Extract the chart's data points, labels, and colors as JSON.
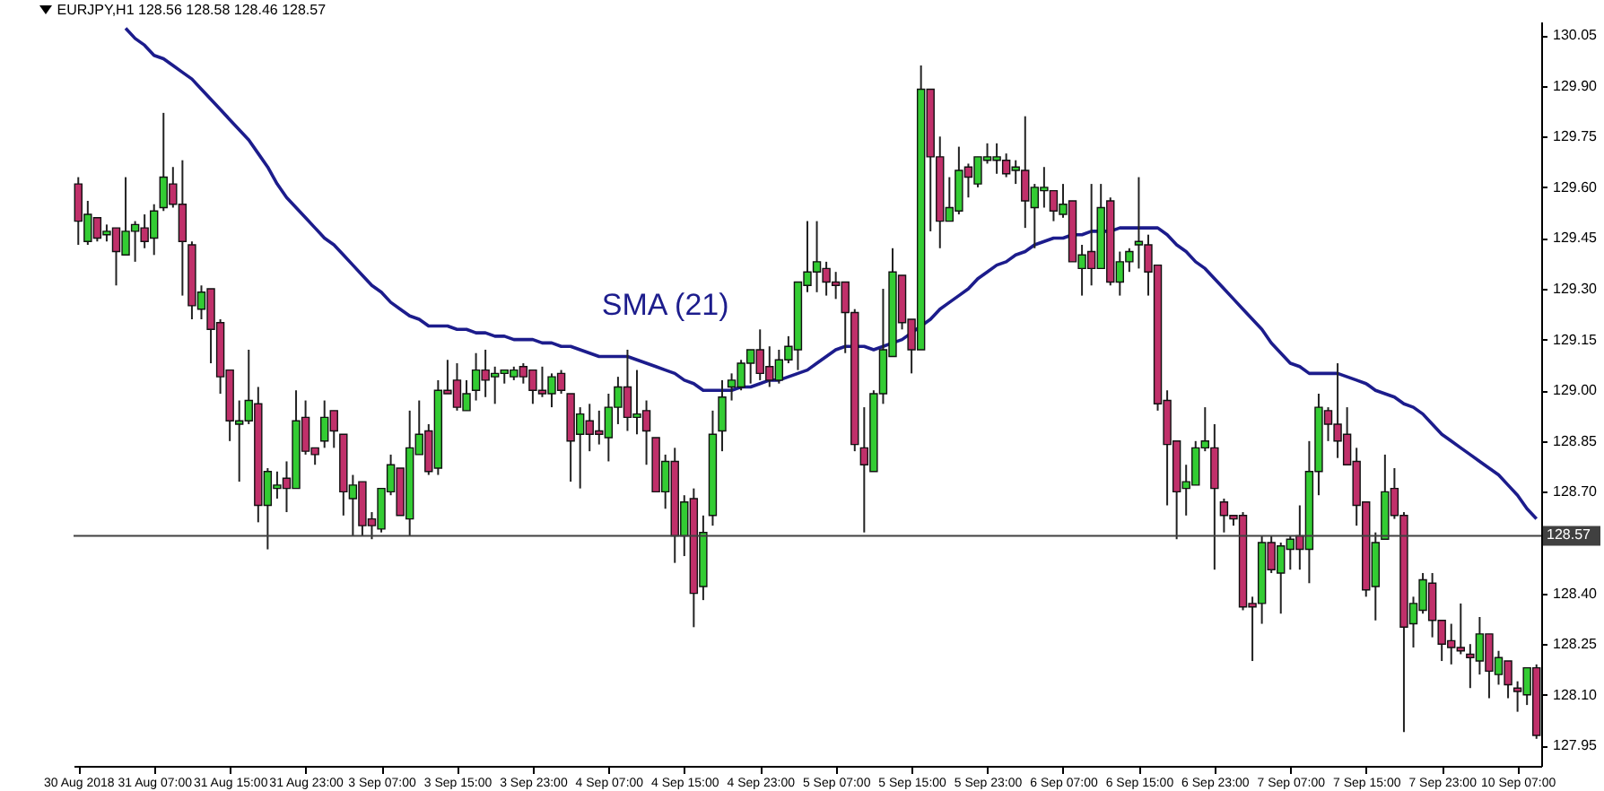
{
  "chart_data": {
    "type": "candlestick",
    "title": "EURJPY,H1 128.56 128.58 128.46 128.57",
    "categories": [
      "30 Aug 2018",
      null,
      null,
      null,
      null,
      null,
      null,
      null,
      "31 Aug 07:00",
      null,
      null,
      null,
      null,
      null,
      null,
      null,
      "31 Aug 15:00",
      null,
      null,
      null,
      null,
      null,
      null,
      null,
      "31 Aug 23:00",
      null,
      null,
      null,
      null,
      null,
      null,
      null,
      "3 Sep 07:00",
      null,
      null,
      null,
      null,
      null,
      null,
      null,
      "3 Sep 15:00",
      null,
      null,
      null,
      null,
      null,
      null,
      null,
      "3 Sep 23:00",
      null,
      null,
      null,
      null,
      null,
      null,
      null,
      "4 Sep 07:00",
      null,
      null,
      null,
      null,
      null,
      null,
      null,
      "4 Sep 15:00",
      null,
      null,
      null,
      null,
      null,
      null,
      null,
      "4 Sep 23:00",
      null,
      null,
      null,
      null,
      null,
      null,
      null,
      "5 Sep 07:00",
      null,
      null,
      null,
      null,
      null,
      null,
      null,
      "5 Sep 15:00",
      null,
      null,
      null,
      null,
      null,
      null,
      null,
      "5 Sep 23:00",
      null,
      null,
      null,
      null,
      null,
      null,
      null,
      "6 Sep 07:00",
      null,
      null,
      null,
      null,
      null,
      null,
      null,
      "6 Sep 15:00",
      null,
      null,
      null,
      null,
      null,
      null,
      null,
      "6 Sep 23:00",
      null,
      null,
      null,
      null,
      null,
      null,
      null,
      "7 Sep 07:00",
      null,
      null,
      null,
      null,
      null,
      null,
      null,
      "7 Sep 15:00",
      null,
      null,
      null,
      null,
      null,
      null,
      null,
      "7 Sep 23:00",
      null,
      null,
      null,
      null,
      null,
      null,
      null,
      "10 Sep 07:00",
      null,
      null
    ],
    "ohlc": [
      [
        129.61,
        129.63,
        129.43,
        129.5
      ],
      [
        129.44,
        129.56,
        129.43,
        129.52
      ],
      [
        129.51,
        129.51,
        129.44,
        129.45
      ],
      [
        129.46,
        129.49,
        129.44,
        129.47
      ],
      [
        129.48,
        129.48,
        129.31,
        129.41
      ],
      [
        129.4,
        129.63,
        129.4,
        129.47
      ],
      [
        129.47,
        129.5,
        129.38,
        129.49
      ],
      [
        129.48,
        129.52,
        129.42,
        129.44
      ],
      [
        129.45,
        129.55,
        129.4,
        129.53
      ],
      [
        129.54,
        129.82,
        129.53,
        129.63
      ],
      [
        129.61,
        129.66,
        129.54,
        129.55
      ],
      [
        129.55,
        129.68,
        129.28,
        129.44
      ],
      [
        129.43,
        129.44,
        129.21,
        129.25
      ],
      [
        129.24,
        129.31,
        129.21,
        129.29
      ],
      [
        129.3,
        129.3,
        129.08,
        129.18
      ],
      [
        129.2,
        129.21,
        128.99,
        129.04
      ],
      [
        129.06,
        129.06,
        128.85,
        128.91
      ],
      [
        128.9,
        128.97,
        128.73,
        128.91
      ],
      [
        128.91,
        129.12,
        128.9,
        128.97
      ],
      [
        128.96,
        129.01,
        128.61,
        128.66
      ],
      [
        128.66,
        128.77,
        128.53,
        128.76
      ],
      [
        128.71,
        128.76,
        128.68,
        128.72
      ],
      [
        128.74,
        128.79,
        128.64,
        128.71
      ],
      [
        128.71,
        129.0,
        128.71,
        128.91
      ],
      [
        128.92,
        128.97,
        128.81,
        128.82
      ],
      [
        128.83,
        128.83,
        128.78,
        128.81
      ],
      [
        128.85,
        128.97,
        128.83,
        128.92
      ],
      [
        128.94,
        128.94,
        128.83,
        128.88
      ],
      [
        128.87,
        128.87,
        128.63,
        128.7
      ],
      [
        128.68,
        128.75,
        128.57,
        128.72
      ],
      [
        128.73,
        128.73,
        128.57,
        128.6
      ],
      [
        128.62,
        128.64,
        128.56,
        128.6
      ],
      [
        128.59,
        128.71,
        128.58,
        128.71
      ],
      [
        128.7,
        128.81,
        128.69,
        128.78
      ],
      [
        128.77,
        128.77,
        128.63,
        128.63
      ],
      [
        128.62,
        128.94,
        128.57,
        128.83
      ],
      [
        128.81,
        128.97,
        128.81,
        128.87
      ],
      [
        128.88,
        128.9,
        128.75,
        128.76
      ],
      [
        128.77,
        129.03,
        128.75,
        129.0
      ],
      [
        129.0,
        129.09,
        128.99,
        128.99
      ],
      [
        129.03,
        129.08,
        128.94,
        128.95
      ],
      [
        128.94,
        129.03,
        128.94,
        128.99
      ],
      [
        129.0,
        129.11,
        128.97,
        129.06
      ],
      [
        129.06,
        129.12,
        128.98,
        129.03
      ],
      [
        129.04,
        129.07,
        128.96,
        129.05
      ],
      [
        129.05,
        129.06,
        129.02,
        129.06
      ],
      [
        129.04,
        129.07,
        129.03,
        129.06
      ],
      [
        129.07,
        129.08,
        129.02,
        129.04
      ],
      [
        129.06,
        129.06,
        128.96,
        129.0
      ],
      [
        129.0,
        129.07,
        128.98,
        128.99
      ],
      [
        128.99,
        129.05,
        128.95,
        129.04
      ],
      [
        129.05,
        129.06,
        128.99,
        129.0
      ],
      [
        128.99,
        128.99,
        128.73,
        128.85
      ],
      [
        128.87,
        128.95,
        128.71,
        128.93
      ],
      [
        128.91,
        128.96,
        128.82,
        128.87
      ],
      [
        128.88,
        128.94,
        128.84,
        128.87
      ],
      [
        128.86,
        128.99,
        128.79,
        128.95
      ],
      [
        128.95,
        129.04,
        128.9,
        129.01
      ],
      [
        129.01,
        129.12,
        128.88,
        128.92
      ],
      [
        128.92,
        129.06,
        128.87,
        128.93
      ],
      [
        128.94,
        128.97,
        128.78,
        128.88
      ],
      [
        128.86,
        128.86,
        128.7,
        128.7
      ],
      [
        128.7,
        128.81,
        128.65,
        128.79
      ],
      [
        128.79,
        128.83,
        128.49,
        128.57
      ],
      [
        128.57,
        128.69,
        128.51,
        128.67
      ],
      [
        128.68,
        128.71,
        128.3,
        128.4
      ],
      [
        128.42,
        128.63,
        128.38,
        128.58
      ],
      [
        128.63,
        128.94,
        128.6,
        128.87
      ],
      [
        128.88,
        129.03,
        128.82,
        128.98
      ],
      [
        129.01,
        129.05,
        128.97,
        129.03
      ],
      [
        129.01,
        129.09,
        129.0,
        129.08
      ],
      [
        129.08,
        129.12,
        129.02,
        129.12
      ],
      [
        129.12,
        129.18,
        129.03,
        129.05
      ],
      [
        129.07,
        129.13,
        129.01,
        129.03
      ],
      [
        129.03,
        129.12,
        129.02,
        129.09
      ],
      [
        129.09,
        129.16,
        129.08,
        129.13
      ],
      [
        129.12,
        129.32,
        129.06,
        129.32
      ],
      [
        129.31,
        129.5,
        129.29,
        129.35
      ],
      [
        129.35,
        129.5,
        129.29,
        129.38
      ],
      [
        129.36,
        129.38,
        129.28,
        129.32
      ],
      [
        129.32,
        129.35,
        129.27,
        129.31
      ],
      [
        129.32,
        129.32,
        129.11,
        129.23
      ],
      [
        129.23,
        129.24,
        128.82,
        128.84
      ],
      [
        128.83,
        128.95,
        128.58,
        128.78
      ],
      [
        128.76,
        129.0,
        128.76,
        128.99
      ],
      [
        128.99,
        129.3,
        128.96,
        129.12
      ],
      [
        129.1,
        129.42,
        129.1,
        129.35
      ],
      [
        129.34,
        129.34,
        129.18,
        129.2
      ],
      [
        129.21,
        129.21,
        129.05,
        129.12
      ],
      [
        129.12,
        129.96,
        129.12,
        129.89
      ],
      [
        129.89,
        129.89,
        129.47,
        129.69
      ],
      [
        129.69,
        129.75,
        129.42,
        129.5
      ],
      [
        129.5,
        129.63,
        129.5,
        129.54
      ],
      [
        129.53,
        129.72,
        129.52,
        129.65
      ],
      [
        129.66,
        129.67,
        129.57,
        129.63
      ],
      [
        129.61,
        129.69,
        129.6,
        129.69
      ],
      [
        129.68,
        129.73,
        129.67,
        129.69
      ],
      [
        129.68,
        129.73,
        129.64,
        129.69
      ],
      [
        129.68,
        129.7,
        129.63,
        129.64
      ],
      [
        129.65,
        129.68,
        129.61,
        129.66
      ],
      [
        129.65,
        129.81,
        129.48,
        129.56
      ],
      [
        129.54,
        129.61,
        129.42,
        129.6
      ],
      [
        129.59,
        129.66,
        129.54,
        129.6
      ],
      [
        129.59,
        129.59,
        129.5,
        129.53
      ],
      [
        129.52,
        129.61,
        129.51,
        129.55
      ],
      [
        129.56,
        129.56,
        129.38,
        129.38
      ],
      [
        129.36,
        129.43,
        129.28,
        129.4
      ],
      [
        129.41,
        129.61,
        129.31,
        129.36
      ],
      [
        129.36,
        129.61,
        129.36,
        129.54
      ],
      [
        129.56,
        129.57,
        129.31,
        129.32
      ],
      [
        129.32,
        129.41,
        129.28,
        129.38
      ],
      [
        129.38,
        129.42,
        129.35,
        129.41
      ],
      [
        129.43,
        129.63,
        129.36,
        129.44
      ],
      [
        129.43,
        129.46,
        129.28,
        129.35
      ],
      [
        129.37,
        129.37,
        128.94,
        128.96
      ],
      [
        128.97,
        129.0,
        128.66,
        128.84
      ],
      [
        128.85,
        128.85,
        128.56,
        128.7
      ],
      [
        128.71,
        128.78,
        128.63,
        128.73
      ],
      [
        128.72,
        128.85,
        128.72,
        128.83
      ],
      [
        128.83,
        128.95,
        128.82,
        128.85
      ],
      [
        128.83,
        128.9,
        128.47,
        128.71
      ],
      [
        128.67,
        128.68,
        128.58,
        128.63
      ],
      [
        128.63,
        128.63,
        128.6,
        128.62
      ],
      [
        128.63,
        128.64,
        128.35,
        128.36
      ],
      [
        128.37,
        128.39,
        128.2,
        128.36
      ],
      [
        128.37,
        128.57,
        128.31,
        128.55
      ],
      [
        128.55,
        128.57,
        128.46,
        128.47
      ],
      [
        128.46,
        128.55,
        128.34,
        128.54
      ],
      [
        128.53,
        128.57,
        128.47,
        128.56
      ],
      [
        128.57,
        128.66,
        128.47,
        128.53
      ],
      [
        128.53,
        128.85,
        128.43,
        128.76
      ],
      [
        128.76,
        128.99,
        128.69,
        128.95
      ],
      [
        128.94,
        128.95,
        128.85,
        128.9
      ],
      [
        128.9,
        129.08,
        128.8,
        128.85
      ],
      [
        128.87,
        128.95,
        128.78,
        128.78
      ],
      [
        128.79,
        128.83,
        128.6,
        128.66
      ],
      [
        128.67,
        128.67,
        128.39,
        128.41
      ],
      [
        128.42,
        128.58,
        128.32,
        128.55
      ],
      [
        128.56,
        128.81,
        128.56,
        128.7
      ],
      [
        128.71,
        128.77,
        128.62,
        128.63
      ],
      [
        128.63,
        128.64,
        127.99,
        128.3
      ],
      [
        128.31,
        128.39,
        128.24,
        128.37
      ],
      [
        128.35,
        128.46,
        128.34,
        128.44
      ],
      [
        128.43,
        128.46,
        128.27,
        128.32
      ],
      [
        128.32,
        128.32,
        128.2,
        128.25
      ],
      [
        128.26,
        128.31,
        128.19,
        128.24
      ],
      [
        128.24,
        128.37,
        128.22,
        128.23
      ],
      [
        128.22,
        128.25,
        128.12,
        128.21
      ],
      [
        128.2,
        128.33,
        128.16,
        128.28
      ],
      [
        128.28,
        128.28,
        128.09,
        128.17
      ],
      [
        128.16,
        128.23,
        128.13,
        128.21
      ],
      [
        128.2,
        128.2,
        128.09,
        128.13
      ],
      [
        128.12,
        128.14,
        128.05,
        128.11
      ],
      [
        128.1,
        128.18,
        128.07,
        128.18
      ],
      [
        128.18,
        128.19,
        127.97,
        127.98
      ]
    ],
    "colors": [
      "#c0306a",
      "#33cc33",
      "#c0306a",
      "#33cc33",
      "#c0306a",
      "#33cc33",
      "#33cc33",
      "#c0306a",
      "#33cc33",
      "#33cc33",
      "#c0306a",
      "#c0306a",
      "#c0306a",
      "#33cc33",
      "#c0306a",
      "#c0306a",
      "#c0306a",
      "#33cc33",
      "#33cc33",
      "#c0306a",
      "#33cc33",
      "#33cc33",
      "#c0306a",
      "#33cc33",
      "#c0306a",
      "#c0306a",
      "#33cc33",
      "#c0306a",
      "#c0306a",
      "#33cc33",
      "#c0306a",
      "#c0306a",
      "#33cc33",
      "#33cc33",
      "#c0306a",
      "#33cc33",
      "#33cc33",
      "#c0306a",
      "#33cc33",
      "#c0306a",
      "#c0306a",
      "#33cc33",
      "#33cc33",
      "#c0306a",
      "#33cc33",
      "#33cc33",
      "#33cc33",
      "#c0306a",
      "#c0306a",
      "#c0306a",
      "#33cc33",
      "#c0306a",
      "#c0306a",
      "#33cc33",
      "#c0306a",
      "#c0306a",
      "#33cc33",
      "#33cc33",
      "#c0306a",
      "#33cc33",
      "#c0306a",
      "#c0306a",
      "#33cc33",
      "#c0306a",
      "#33cc33",
      "#c0306a",
      "#33cc33",
      "#33cc33",
      "#33cc33",
      "#33cc33",
      "#33cc33",
      "#33cc33",
      "#c0306a",
      "#c0306a",
      "#33cc33",
      "#33cc33",
      "#33cc33",
      "#33cc33",
      "#33cc33",
      "#c0306a",
      "#c0306a",
      "#c0306a",
      "#c0306a",
      "#c0306a",
      "#33cc33",
      "#33cc33",
      "#33cc33",
      "#c0306a",
      "#c0306a",
      "#33cc33",
      "#c0306a",
      "#c0306a",
      "#33cc33",
      "#33cc33",
      "#c0306a",
      "#33cc33",
      "#33cc33",
      "#33cc33",
      "#c0306a",
      "#33cc33",
      "#c0306a",
      "#33cc33",
      "#33cc33",
      "#c0306a",
      "#33cc33",
      "#c0306a",
      "#33cc33",
      "#c0306a",
      "#33cc33",
      "#c0306a",
      "#33cc33",
      "#33cc33",
      "#33cc33",
      "#c0306a",
      "#c0306a",
      "#c0306a",
      "#c0306a",
      "#33cc33",
      "#33cc33",
      "#33cc33",
      "#c0306a",
      "#c0306a",
      "#c0306a",
      "#c0306a",
      "#c0306a",
      "#33cc33",
      "#c0306a",
      "#33cc33",
      "#33cc33",
      "#c0306a",
      "#33cc33",
      "#33cc33",
      "#c0306a",
      "#c0306a",
      "#c0306a",
      "#c0306a",
      "#c0306a",
      "#33cc33",
      "#33cc33",
      "#c0306a",
      "#c0306a",
      "#33cc33",
      "#33cc33",
      "#c0306a",
      "#c0306a",
      "#c0306a",
      "#c0306a",
      "#c0306a",
      "#33cc33",
      "#c0306a",
      "#33cc33",
      "#c0306a",
      "#c0306a",
      "#33cc33",
      "#c0306a"
    ],
    "series": [
      {
        "type": "line",
        "name": "SMA (21)",
        "color": "#1c1c8c",
        "values": [
          null,
          null,
          null,
          null,
          null,
          130.07,
          130.04,
          130.02,
          129.99,
          129.98,
          129.96,
          129.94,
          129.92,
          129.89,
          129.86,
          129.83,
          129.8,
          129.77,
          129.74,
          129.7,
          129.66,
          129.61,
          129.57,
          129.54,
          129.51,
          129.48,
          129.45,
          129.43,
          129.4,
          129.37,
          129.34,
          129.31,
          129.29,
          129.26,
          129.24,
          129.22,
          129.21,
          129.19,
          129.19,
          129.19,
          129.18,
          129.18,
          129.17,
          129.17,
          129.16,
          129.16,
          129.15,
          129.15,
          129.15,
          129.14,
          129.14,
          129.13,
          129.13,
          129.12,
          129.11,
          129.1,
          129.1,
          129.1,
          129.1,
          129.09,
          129.08,
          129.07,
          129.06,
          129.05,
          129.03,
          129.02,
          129.0,
          129.0,
          129.0,
          129.0,
          129.01,
          129.01,
          129.02,
          129.03,
          129.03,
          129.04,
          129.05,
          129.06,
          129.08,
          129.1,
          129.12,
          129.13,
          129.13,
          129.13,
          129.12,
          129.13,
          129.14,
          129.15,
          129.17,
          129.19,
          129.21,
          129.24,
          129.26,
          129.28,
          129.3,
          129.33,
          129.35,
          129.37,
          129.38,
          129.4,
          129.41,
          129.43,
          129.44,
          129.45,
          129.45,
          129.46,
          129.46,
          129.47,
          129.47,
          129.47,
          129.48,
          129.48,
          129.48,
          129.48,
          129.48,
          129.46,
          129.43,
          129.41,
          129.38,
          129.36,
          129.33,
          129.3,
          129.27,
          129.24,
          129.21,
          129.18,
          129.14,
          129.11,
          129.08,
          129.07,
          129.05,
          129.05,
          129.05,
          129.05,
          129.04,
          129.03,
          129.02,
          129.0,
          128.99,
          128.98,
          128.96,
          128.95,
          128.93,
          128.9,
          128.87,
          128.85,
          128.83,
          128.81,
          128.79,
          128.77,
          128.75,
          128.72,
          128.69,
          128.65,
          128.62
        ]
      }
    ],
    "ylim": [
      127.89,
      130.09
    ],
    "yticks": [
      {
        "value": 127.95,
        "label": "127.95"
      },
      {
        "value": 128.1,
        "label": "128.10"
      },
      {
        "value": 128.25,
        "label": "128.25"
      },
      {
        "value": 128.4,
        "label": "128.40"
      },
      {
        "value": 128.7,
        "label": "128.70"
      },
      {
        "value": 128.85,
        "label": "128.85"
      },
      {
        "value": 129.0,
        "label": "129.00"
      },
      {
        "value": 129.15,
        "label": "129.15"
      },
      {
        "value": 129.3,
        "label": "129.30"
      },
      {
        "value": 129.45,
        "label": "129.45"
      },
      {
        "value": 129.6,
        "label": "129.60"
      },
      {
        "value": 129.75,
        "label": "129.75"
      },
      {
        "value": 129.9,
        "label": "129.90"
      },
      {
        "value": 130.05,
        "label": "130.05"
      }
    ],
    "ref_lines": [
      {
        "axis": "y",
        "value": 128.57,
        "label": "128.57",
        "color": "#404040"
      }
    ]
  }
}
